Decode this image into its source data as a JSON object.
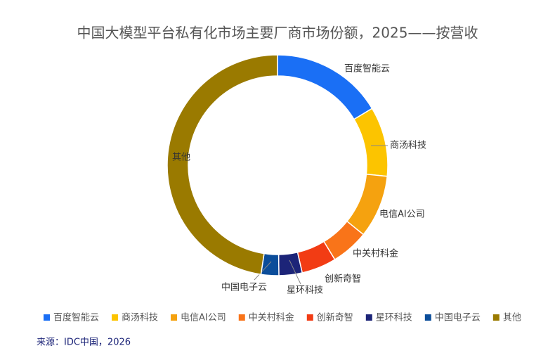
{
  "chart_data": {
    "type": "donut",
    "title": "中国大模型平台私有化市场主要厂商市场份额，2025——按营收",
    "categories": [
      "百度智能云",
      "商汤科技",
      "电信AI公司",
      "中关村科金",
      "创新奇智",
      "星环科技",
      "中国电子云",
      "其他"
    ],
    "values": [
      16.4,
      10.2,
      9.2,
      5.5,
      5.1,
      3.4,
      2.6,
      47.6
    ],
    "colors": [
      "#1a6ff5",
      "#fcc400",
      "#f5a20f",
      "#f97419",
      "#f23c14",
      "#1c2478",
      "#0b4d9a",
      "#9a7a00"
    ],
    "legend": "bottom",
    "source": "来源：IDC中国，2026"
  }
}
